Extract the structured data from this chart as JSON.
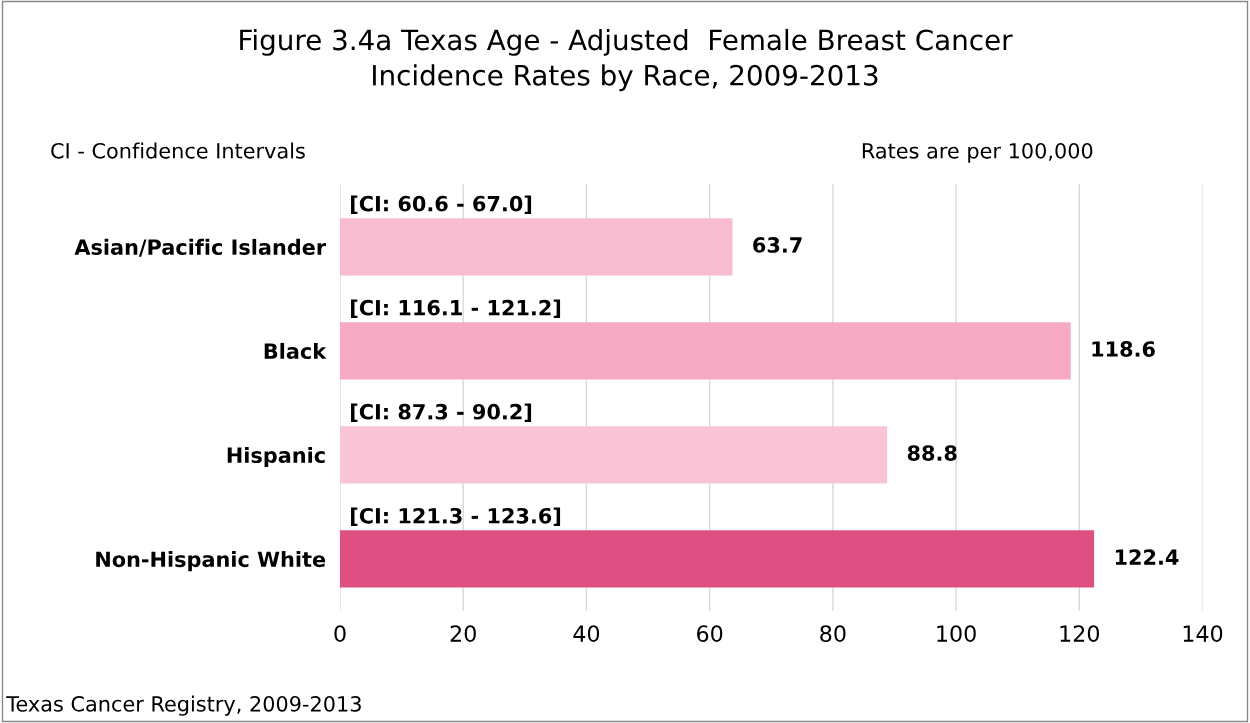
{
  "chart_data": {
    "type": "bar",
    "orientation": "horizontal",
    "title": "Figure 3.4a Texas Age - Adjusted  Female Breast Cancer\nIncidence Rates by Race, 2009-2013",
    "categories": [
      "Asian/Pacific Islander",
      "Black",
      "Hispanic",
      "Non-Hispanic White"
    ],
    "values": [
      63.7,
      118.6,
      88.8,
      122.4
    ],
    "colors": [
      "#f7bcd0",
      "#f5a9c3",
      "#f8c4d6",
      "#e04f82"
    ],
    "data_labels": true,
    "xlim": [
      0,
      140
    ],
    "xticks": [
      0,
      20,
      40,
      60,
      80,
      100,
      120,
      140
    ],
    "grid": "x",
    "annotations": [
      "CI - Confidence Intervals",
      "Rates are per 100,000",
      "Texas Cancer Registry, 2009-2013",
      "[CI: 60.6 - 67.0]",
      "[CI: 116.1 - 121.2]",
      "[CI: 87.3 - 90.2]",
      "[CI: 121.3 - 123.6]"
    ]
  }
}
